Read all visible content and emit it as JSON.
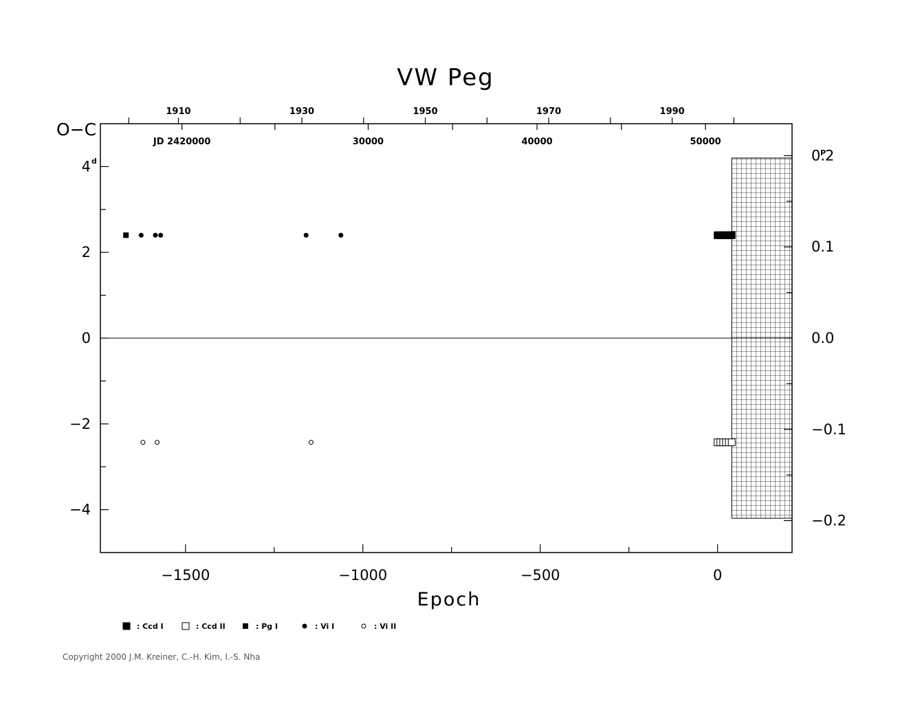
{
  "chart_data": {
    "type": "scatter",
    "title": "VW  Peg",
    "xlabel": "Epoch",
    "ylabel": "O−C",
    "ylabel_unit": "d",
    "y2_unit": "P",
    "xlim": [
      -1740,
      210
    ],
    "ylim": [
      -5,
      5
    ],
    "y2lim": [
      -0.235,
      0.235
    ],
    "x_ticks": [
      -1500,
      -1000,
      -500,
      0
    ],
    "x_tick_labels": [
      "−1500",
      "−1000",
      "−500",
      "0"
    ],
    "y_ticks": [
      -4,
      -2,
      0,
      2,
      4
    ],
    "y_tick_labels": [
      "−4",
      "−2",
      "0",
      "2",
      "4"
    ],
    "y2_ticks": [
      -0.2,
      -0.1,
      0.0,
      0.1,
      0.2
    ],
    "y2_tick_labels": [
      "−0.2",
      "−0.1",
      "0.0",
      "0.1",
      "0.2"
    ],
    "year_ticks": [
      1910,
      1930,
      1950,
      1970,
      1990
    ],
    "year_tick_labels": [
      "1910",
      "1930",
      "1950",
      "1970",
      "1990"
    ],
    "year_label_epochs": [
      -1520,
      -1172,
      -824,
      -476,
      -128
    ],
    "jd_tick_labels": [
      "JD  2420000",
      "30000",
      "40000",
      "50000"
    ],
    "jd_label_epochs": [
      -1510,
      -985,
      -509,
      -34
    ],
    "zero_line": true,
    "grid": false,
    "hatched_region": {
      "x": [
        40,
        210
      ],
      "y": [
        -4.2,
        4.2
      ]
    },
    "legend_position": "bottom-left",
    "series": [
      {
        "name": "Ccd I",
        "marker": "square-filled",
        "points": [
          [
            0,
            2.4
          ],
          [
            6,
            2.4
          ],
          [
            12,
            2.4
          ],
          [
            18,
            2.4
          ],
          [
            24,
            2.4
          ],
          [
            30,
            2.4
          ],
          [
            36,
            2.4
          ],
          [
            40,
            2.4
          ]
        ]
      },
      {
        "name": "Ccd II",
        "marker": "square-open",
        "points": [
          [
            0,
            -2.43
          ],
          [
            8,
            -2.43
          ],
          [
            16,
            -2.43
          ],
          [
            24,
            -2.43
          ],
          [
            32,
            -2.43
          ],
          [
            40,
            -2.43
          ]
        ]
      },
      {
        "name": "Pg I",
        "marker": "square-small",
        "points": [
          [
            -1668,
            2.4
          ]
        ]
      },
      {
        "name": "Vi I",
        "marker": "circle-filled",
        "points": [
          [
            -1625,
            2.4
          ],
          [
            -1585,
            2.4
          ],
          [
            -1570,
            2.4
          ],
          [
            -1160,
            2.4
          ],
          [
            -1062,
            2.4
          ]
        ]
      },
      {
        "name": "Vi II",
        "marker": "circle-open",
        "points": [
          [
            -1620,
            -2.43
          ],
          [
            -1580,
            -2.43
          ],
          [
            -1146,
            -2.43
          ]
        ]
      }
    ],
    "legend": [
      {
        "marker": "square-filled",
        "label": ": Ccd  I"
      },
      {
        "marker": "square-open",
        "label": ": Ccd  II"
      },
      {
        "marker": "square-small",
        "label": ": Pg  I"
      },
      {
        "marker": "circle-filled",
        "label": ": Vi  I"
      },
      {
        "marker": "circle-open",
        "label": ": Vi  II"
      }
    ]
  },
  "copyright": "Copyright 2000 J.M. Kreiner, C.-H. Kim, I.-S. Nha"
}
